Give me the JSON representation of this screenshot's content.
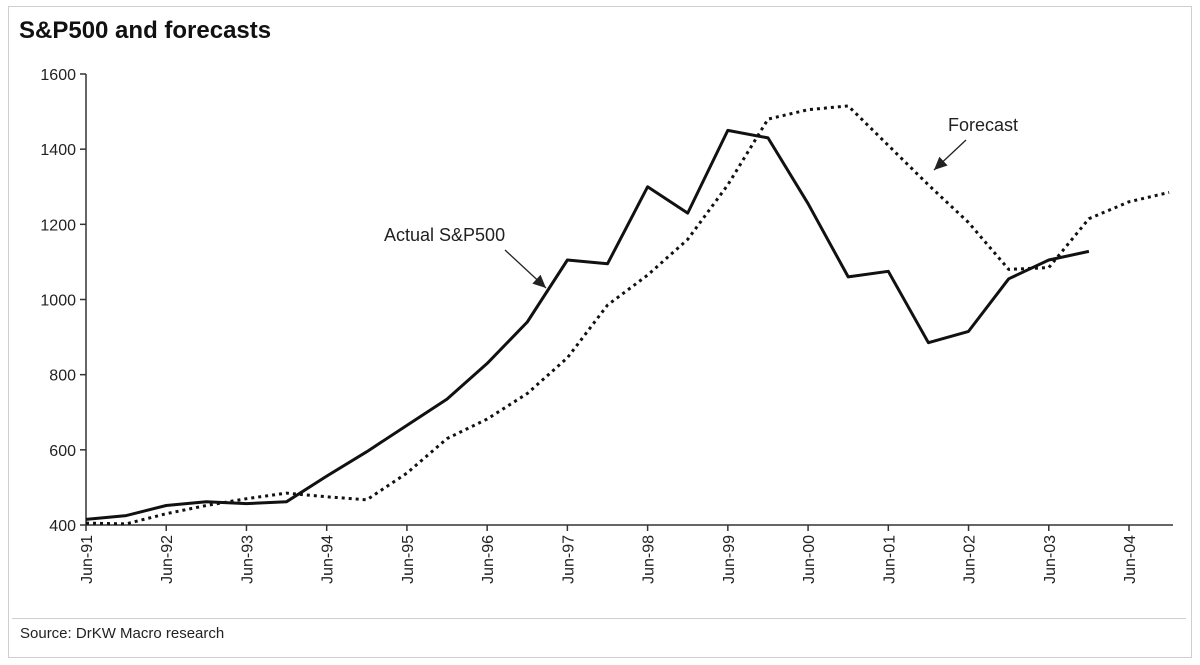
{
  "title": "S&P500 and forecasts",
  "source": "Source: DrKW Macro research",
  "chart_data": {
    "type": "line",
    "title": "S&P500 and forecasts",
    "xlabel": "",
    "ylabel": "",
    "ylim": [
      400,
      1600
    ],
    "yticks": [
      400,
      600,
      800,
      1000,
      1200,
      1400,
      1600
    ],
    "xlim": [
      1991.0,
      2004.5
    ],
    "xticks": [
      {
        "label": "Jun-91",
        "x": 1991.0
      },
      {
        "label": "Jun-92",
        "x": 1992.0
      },
      {
        "label": "Jun-93",
        "x": 1993.0
      },
      {
        "label": "Jun-94",
        "x": 1994.0
      },
      {
        "label": "Jun-95",
        "x": 1995.0
      },
      {
        "label": "Jun-96",
        "x": 1996.0
      },
      {
        "label": "Jun-97",
        "x": 1997.0
      },
      {
        "label": "Jun-98",
        "x": 1998.0
      },
      {
        "label": "Jun-99",
        "x": 1999.0
      },
      {
        "label": "Jun-00",
        "x": 2000.0
      },
      {
        "label": "Jun-01",
        "x": 2001.0
      },
      {
        "label": "Jun-02",
        "x": 2002.0
      },
      {
        "label": "Jun-03",
        "x": 2003.0
      },
      {
        "label": "Jun-04",
        "x": 2004.0
      }
    ],
    "grid": false,
    "series": [
      {
        "name": "Actual S&P500",
        "style": "solid",
        "color": "#111111",
        "points": [
          [
            1991.0,
            415
          ],
          [
            1991.5,
            425
          ],
          [
            1992.0,
            452
          ],
          [
            1992.5,
            462
          ],
          [
            1993.0,
            457
          ],
          [
            1993.5,
            462
          ],
          [
            1994.0,
            530
          ],
          [
            1994.5,
            595
          ],
          [
            1995.0,
            665
          ],
          [
            1995.5,
            735
          ],
          [
            1996.0,
            830
          ],
          [
            1996.5,
            940
          ],
          [
            1997.0,
            1105
          ],
          [
            1997.5,
            1095
          ],
          [
            1998.0,
            1300
          ],
          [
            1998.5,
            1230
          ],
          [
            1999.0,
            1450
          ],
          [
            1999.5,
            1430
          ],
          [
            2000.0,
            1255
          ],
          [
            2000.5,
            1060
          ],
          [
            2001.0,
            1075
          ],
          [
            2001.5,
            885
          ],
          [
            2002.0,
            915
          ],
          [
            2002.5,
            1055
          ],
          [
            2003.0,
            1105
          ],
          [
            2003.5,
            1128
          ]
        ]
      },
      {
        "name": "Forecast",
        "style": "dotted",
        "color": "#111111",
        "points": [
          [
            1991.0,
            405
          ],
          [
            1991.5,
            403
          ],
          [
            1992.0,
            430
          ],
          [
            1992.5,
            452
          ],
          [
            1993.0,
            470
          ],
          [
            1993.5,
            485
          ],
          [
            1994.0,
            475
          ],
          [
            1994.5,
            467
          ],
          [
            1995.0,
            538
          ],
          [
            1995.5,
            630
          ],
          [
            1996.0,
            682
          ],
          [
            1996.5,
            750
          ],
          [
            1997.0,
            845
          ],
          [
            1997.5,
            985
          ],
          [
            1998.0,
            1065
          ],
          [
            1998.5,
            1160
          ],
          [
            1999.0,
            1305
          ],
          [
            1999.5,
            1480
          ],
          [
            2000.0,
            1505
          ],
          [
            2000.5,
            1515
          ],
          [
            2001.0,
            1410
          ],
          [
            2001.5,
            1305
          ],
          [
            2002.0,
            1205
          ],
          [
            2002.5,
            1080
          ],
          [
            2003.0,
            1085
          ],
          [
            2003.5,
            1215
          ],
          [
            2004.0,
            1260
          ],
          [
            2004.5,
            1285
          ]
        ]
      }
    ],
    "annotations": [
      {
        "text": "Actual S&P500",
        "series": "Actual S&P500"
      },
      {
        "text": "Forecast",
        "series": "Forecast"
      }
    ]
  }
}
